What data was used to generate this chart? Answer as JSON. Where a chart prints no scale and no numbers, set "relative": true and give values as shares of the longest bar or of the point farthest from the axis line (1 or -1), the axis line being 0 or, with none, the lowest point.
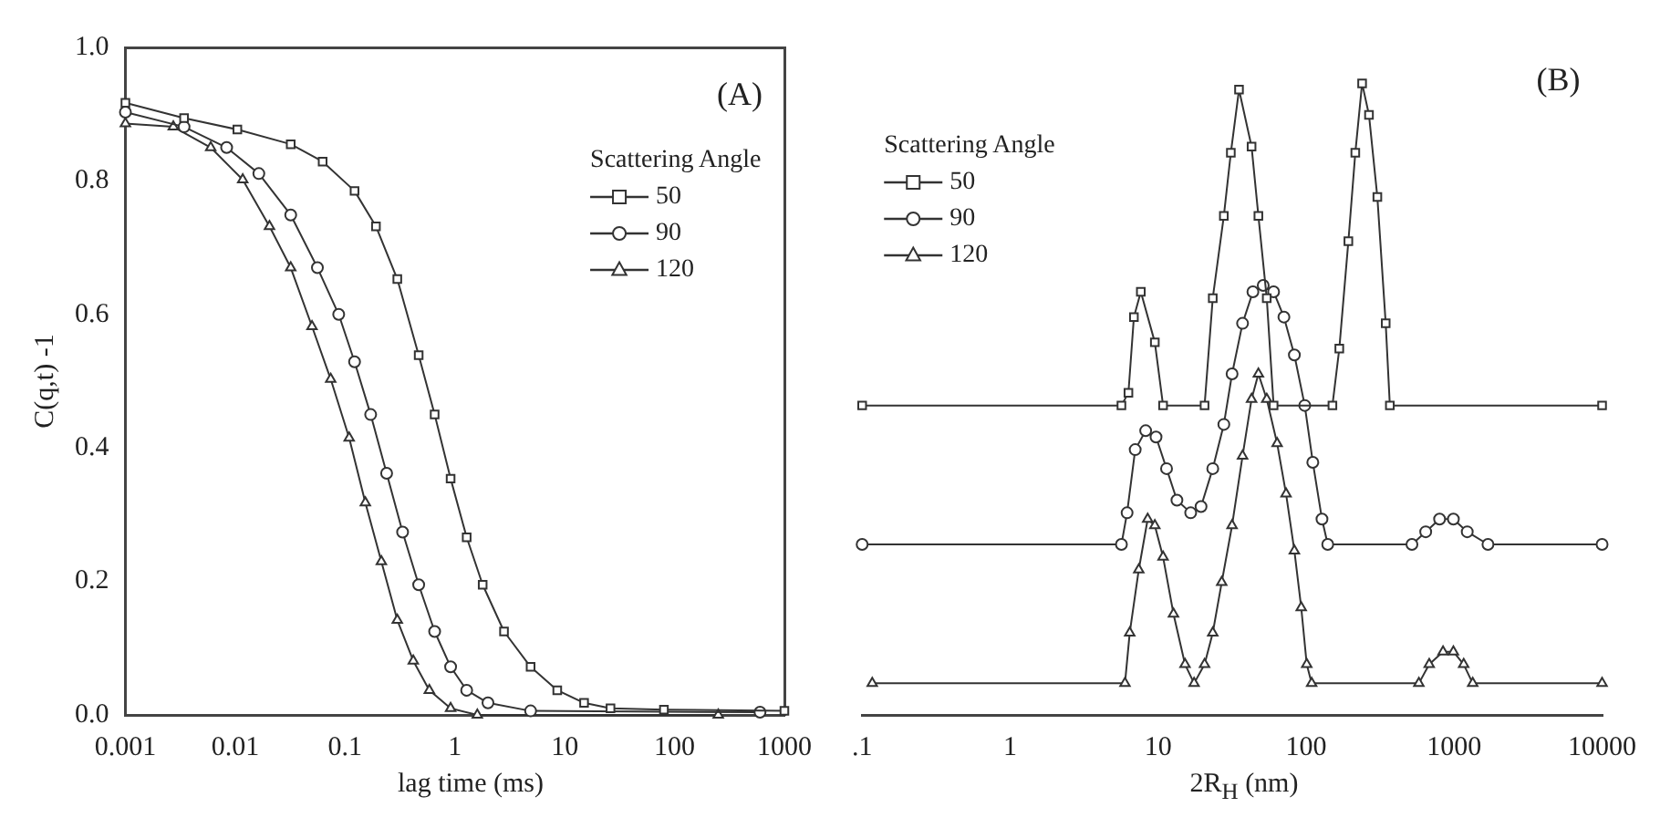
{
  "chart_data": [
    {
      "type": "line",
      "xlabel": "lag time (ms)",
      "ylabel": "C(q,t) -1",
      "legend_title": "Scattering Angle",
      "legend": "top right",
      "annotations": [
        "(A)"
      ],
      "log": "x",
      "xlim": [
        0.001,
        1000
      ],
      "xticks": [
        0.001,
        0.01,
        0.1,
        1,
        10,
        100,
        1000
      ],
      "ylim": [
        0,
        1
      ],
      "yticks": [
        {
          "value": 0,
          "label": "0.0"
        },
        {
          "value": 0.2,
          "label": "0.2"
        },
        {
          "value": 0.4,
          "label": "0.4"
        },
        {
          "value": 0.6,
          "label": "0.6"
        },
        {
          "value": 0.8,
          "label": "0.8"
        },
        {
          "value": 1,
          "label": "1.0"
        }
      ],
      "series": [
        {
          "name": "50",
          "color": "#333333",
          "marker": "square",
          "x": [
            0.001,
            0.00342,
            0.01045,
            0.032,
            0.0625,
            0.122,
            0.191,
            0.299,
            0.468,
            0.654,
            0.914,
            1.28,
            1.79,
            2.8,
            4.89,
            8.55,
            15,
            26.1,
            80,
            1000
          ],
          "values": [
            0.917,
            0.894,
            0.877,
            0.855,
            0.829,
            0.785,
            0.732,
            0.653,
            0.539,
            0.45,
            0.354,
            0.266,
            0.195,
            0.125,
            0.072,
            0.037,
            0.018,
            0.01,
            0.008,
            0.006
          ]
        },
        {
          "name": "90",
          "color": "#333333",
          "marker": "circle",
          "x": [
            0.001,
            0.00342,
            0.00835,
            0.0164,
            0.032,
            0.056,
            0.0875,
            0.122,
            0.171,
            0.239,
            0.334,
            0.468,
            0.654,
            0.914,
            1.28,
            2.0,
            4.89,
            600
          ],
          "values": [
            0.903,
            0.881,
            0.85,
            0.811,
            0.749,
            0.67,
            0.6,
            0.529,
            0.45,
            0.362,
            0.274,
            0.195,
            0.125,
            0.072,
            0.037,
            0.018,
            0.006,
            0.004
          ]
        },
        {
          "name": "120",
          "color": "#333333",
          "marker": "triangle",
          "x": [
            0.001,
            0.00273,
            0.00598,
            0.0117,
            0.0205,
            0.032,
            0.05,
            0.074,
            0.109,
            0.153,
            0.214,
            0.299,
            0.418,
            0.585,
            0.914,
            1.6,
            250
          ],
          "values": [
            0.886,
            0.881,
            0.85,
            0.802,
            0.732,
            0.67,
            0.582,
            0.503,
            0.415,
            0.318,
            0.23,
            0.142,
            0.081,
            0.037,
            0.01,
            0,
            0
          ]
        }
      ]
    },
    {
      "type": "line",
      "xlabel": "2R$_{H}$ (nm)",
      "legend_title": "Scattering Angle",
      "legend": "top left",
      "annotations": [
        "(B)"
      ],
      "relative": true,
      "log": "x",
      "xlim": [
        0.1,
        10000
      ],
      "xticks": [
        {
          "value": 0.1,
          "label": ".1"
        },
        1,
        10,
        100,
        1000,
        10000
      ],
      "series": [
        {
          "name": "50",
          "color": "#333333",
          "marker": "square",
          "x": [
            0.1,
            5.65,
            6.3,
            6.86,
            7.64,
            9.5,
            10.8,
            20.6,
            23.4,
            27.8,
            31.0,
            35.2,
            42.8,
            47.6,
            54.2,
            60.3,
            150.6,
            167.6,
            193,
            215,
            239,
            266,
            303,
            345,
            368,
            10000
          ],
          "values": [
            0.49,
            0.49,
            0.51,
            0.63,
            0.67,
            0.59,
            0.49,
            0.49,
            0.66,
            0.79,
            0.89,
            0.99,
            0.9,
            0.79,
            0.66,
            0.49,
            0.49,
            0.58,
            0.75,
            0.89,
            1,
            0.95,
            0.82,
            0.62,
            0.49,
            0.49
          ]
        },
        {
          "name": "90",
          "color": "#333333",
          "marker": "circle",
          "x": [
            0.1,
            5.65,
            6.17,
            7.0,
            8.24,
            9.68,
            11.4,
            13.4,
            16.6,
            19.5,
            23.4,
            27.8,
            31.6,
            37.2,
            43.7,
            51.3,
            60.3,
            70.8,
            83.3,
            97.9,
            111,
            128,
            140,
            519,
            643,
            798,
            989,
            1227,
            1694,
            10000
          ],
          "values": [
            0.27,
            0.27,
            0.32,
            0.42,
            0.45,
            0.44,
            0.39,
            0.34,
            0.32,
            0.33,
            0.39,
            0.46,
            0.54,
            0.62,
            0.67,
            0.68,
            0.67,
            0.63,
            0.57,
            0.49,
            0.4,
            0.31,
            0.27,
            0.27,
            0.29,
            0.31,
            0.31,
            0.29,
            0.27,
            0.27
          ]
        },
        {
          "name": "120",
          "color": "#333333",
          "marker": "triangle",
          "x": [
            0.117,
            5.97,
            6.43,
            7.4,
            8.5,
            9.5,
            10.8,
            12.7,
            15.2,
            17.5,
            20.6,
            23.4,
            26.9,
            31.6,
            37.2,
            42.8,
            47.6,
            54.2,
            63.7,
            73.2,
            83.3,
            92.7,
            101,
            109,
            578,
            679,
            842,
            989,
            1161,
            1336,
            10000
          ],
          "values": [
            0.05,
            0.05,
            0.13,
            0.23,
            0.31,
            0.3,
            0.25,
            0.16,
            0.08,
            0.05,
            0.08,
            0.13,
            0.21,
            0.3,
            0.41,
            0.5,
            0.54,
            0.5,
            0.43,
            0.35,
            0.26,
            0.17,
            0.08,
            0.05,
            0.05,
            0.08,
            0.1,
            0.1,
            0.08,
            0.05,
            0.05
          ]
        }
      ]
    }
  ]
}
